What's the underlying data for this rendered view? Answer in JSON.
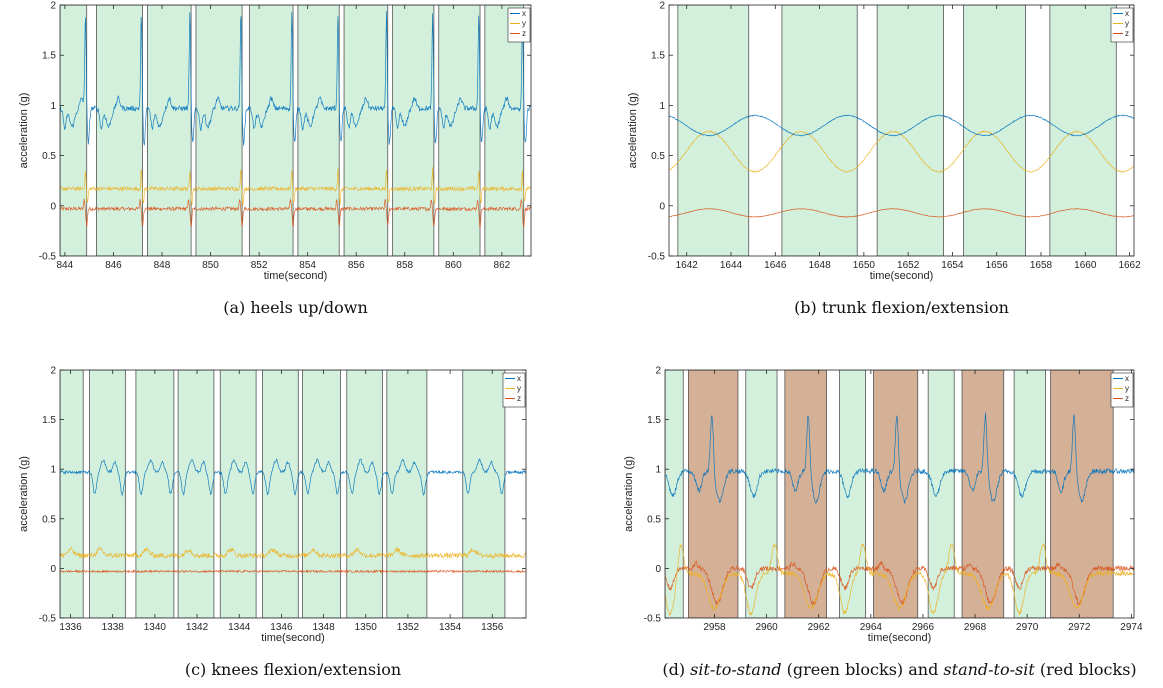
{
  "colors": {
    "x": "#0072BD",
    "y": "#EDB120",
    "z": "#D95319",
    "green_block": "#7FD39A",
    "red_block": "#B07040"
  },
  "chart_data": [
    {
      "type": "line",
      "caption": "(a) heels up/down",
      "caption_parts": [
        {
          "text": "(a) heels up/down",
          "italic": false
        }
      ],
      "xlabel": "time(second)",
      "ylabel": "acceleration (g)",
      "xlim": [
        843.8,
        863.2
      ],
      "ylim": [
        -0.5,
        2
      ],
      "xticks": [
        844,
        846,
        848,
        850,
        852,
        854,
        856,
        858,
        860,
        862
      ],
      "yticks": [
        -0.5,
        0,
        0.5,
        1,
        1.5,
        2
      ],
      "legend": {
        "entries": [
          "x",
          "y",
          "z"
        ],
        "placement": "top-right"
      },
      "series_style": "heels",
      "series": [
        {
          "name": "x",
          "baseline": 0.97
        },
        {
          "name": "y",
          "baseline": 0.17
        },
        {
          "name": "z",
          "baseline": -0.03
        }
      ],
      "blocks": [
        {
          "start": 843.8,
          "end": 844.9,
          "kind": "green"
        },
        {
          "start": 845.3,
          "end": 847.2,
          "kind": "green"
        },
        {
          "start": 847.4,
          "end": 849.2,
          "kind": "green"
        },
        {
          "start": 849.4,
          "end": 851.3,
          "kind": "green"
        },
        {
          "start": 851.6,
          "end": 853.4,
          "kind": "green"
        },
        {
          "start": 853.6,
          "end": 855.3,
          "kind": "green"
        },
        {
          "start": 855.5,
          "end": 857.3,
          "kind": "green"
        },
        {
          "start": 857.5,
          "end": 859.2,
          "kind": "green"
        },
        {
          "start": 859.4,
          "end": 861.1,
          "kind": "green"
        },
        {
          "start": 861.3,
          "end": 862.9,
          "kind": "green"
        }
      ]
    },
    {
      "type": "line",
      "caption": "(b) trunk flexion/extension",
      "caption_parts": [
        {
          "text": "(b) trunk flexion/extension",
          "italic": false
        }
      ],
      "xlabel": "time(second)",
      "ylabel": "acceleration (g)",
      "xlim": [
        1641.2,
        1662.2
      ],
      "ylim": [
        -0.5,
        2
      ],
      "xticks": [
        1642,
        1644,
        1646,
        1648,
        1650,
        1652,
        1654,
        1656,
        1658,
        1660,
        1662
      ],
      "yticks": [
        -0.5,
        0,
        0.5,
        1,
        1.5,
        2
      ],
      "legend": {
        "entries": [
          "x",
          "y",
          "z"
        ],
        "placement": "top-right"
      },
      "series_style": "trunk",
      "series": [
        {
          "name": "x",
          "baseline": 0.8
        },
        {
          "name": "y",
          "baseline": 0.55
        },
        {
          "name": "z",
          "baseline": -0.07
        }
      ],
      "blocks": [
        {
          "start": 1641.6,
          "end": 1644.8,
          "kind": "green"
        },
        {
          "start": 1646.3,
          "end": 1649.7,
          "kind": "green"
        },
        {
          "start": 1650.6,
          "end": 1653.6,
          "kind": "green"
        },
        {
          "start": 1654.5,
          "end": 1657.3,
          "kind": "green"
        },
        {
          "start": 1658.4,
          "end": 1661.4,
          "kind": "green"
        }
      ]
    },
    {
      "type": "line",
      "caption": "(c) knees flexion/extension",
      "caption_parts": [
        {
          "text": "(c) knees flexion/extension",
          "italic": false
        }
      ],
      "xlabel": "time(second)",
      "ylabel": "acceleration (g)",
      "xlim": [
        1335.5,
        1357.6
      ],
      "ylim": [
        -0.5,
        2
      ],
      "xticks": [
        1336,
        1338,
        1340,
        1342,
        1344,
        1346,
        1348,
        1350,
        1352,
        1354,
        1356
      ],
      "yticks": [
        -0.5,
        0,
        0.5,
        1,
        1.5,
        2
      ],
      "legend": {
        "entries": [
          "x",
          "y",
          "z"
        ],
        "placement": "top-right"
      },
      "series_style": "knees",
      "series": [
        {
          "name": "x",
          "baseline": 0.97
        },
        {
          "name": "y",
          "baseline": 0.13
        },
        {
          "name": "z",
          "baseline": -0.03
        }
      ],
      "blocks": [
        {
          "start": 1335.5,
          "end": 1336.6,
          "kind": "green"
        },
        {
          "start": 1336.9,
          "end": 1338.6,
          "kind": "green"
        },
        {
          "start": 1339.1,
          "end": 1340.9,
          "kind": "green"
        },
        {
          "start": 1341.1,
          "end": 1342.8,
          "kind": "green"
        },
        {
          "start": 1343.1,
          "end": 1344.8,
          "kind": "green"
        },
        {
          "start": 1345.1,
          "end": 1346.8,
          "kind": "green"
        },
        {
          "start": 1347.0,
          "end": 1348.8,
          "kind": "green"
        },
        {
          "start": 1349.1,
          "end": 1350.8,
          "kind": "green"
        },
        {
          "start": 1351.0,
          "end": 1352.9,
          "kind": "green"
        },
        {
          "start": 1354.6,
          "end": 1356.6,
          "kind": "green"
        }
      ]
    },
    {
      "type": "line",
      "caption": "(d) sit-to-stand (green blocks) and stand-to-sit (red blocks)",
      "caption_parts": [
        {
          "text": "(d) ",
          "italic": false
        },
        {
          "text": "sit-to-stand",
          "italic": true
        },
        {
          "text": " (green blocks) and ",
          "italic": false
        },
        {
          "text": "stand-to-sit",
          "italic": true
        },
        {
          "text": " (red blocks)",
          "italic": false
        }
      ],
      "xlabel": "time(second)",
      "ylabel": "acceleration (g)",
      "xlim": [
        2956.1,
        2974.1
      ],
      "ylim": [
        -0.5,
        2
      ],
      "xticks": [
        2958,
        2960,
        2962,
        2964,
        2966,
        2968,
        2970,
        2972,
        2974
      ],
      "yticks": [
        -0.5,
        0,
        0.5,
        1,
        1.5,
        2
      ],
      "legend": {
        "entries": [
          "x",
          "y",
          "z"
        ],
        "placement": "top-right"
      },
      "series_style": "sit",
      "series": [
        {
          "name": "x",
          "baseline": 0.98
        },
        {
          "name": "y",
          "baseline": -0.05
        },
        {
          "name": "z",
          "baseline": 0.0
        }
      ],
      "blocks": [
        {
          "start": 2956.1,
          "end": 2956.8,
          "kind": "green"
        },
        {
          "start": 2957.0,
          "end": 2958.9,
          "kind": "red"
        },
        {
          "start": 2959.2,
          "end": 2960.4,
          "kind": "green"
        },
        {
          "start": 2960.7,
          "end": 2962.3,
          "kind": "red"
        },
        {
          "start": 2962.8,
          "end": 2963.8,
          "kind": "green"
        },
        {
          "start": 2964.1,
          "end": 2965.8,
          "kind": "red"
        },
        {
          "start": 2966.2,
          "end": 2967.2,
          "kind": "green"
        },
        {
          "start": 2967.5,
          "end": 2969.1,
          "kind": "red"
        },
        {
          "start": 2969.5,
          "end": 2970.7,
          "kind": "green"
        },
        {
          "start": 2970.9,
          "end": 2973.3,
          "kind": "red"
        }
      ]
    }
  ]
}
